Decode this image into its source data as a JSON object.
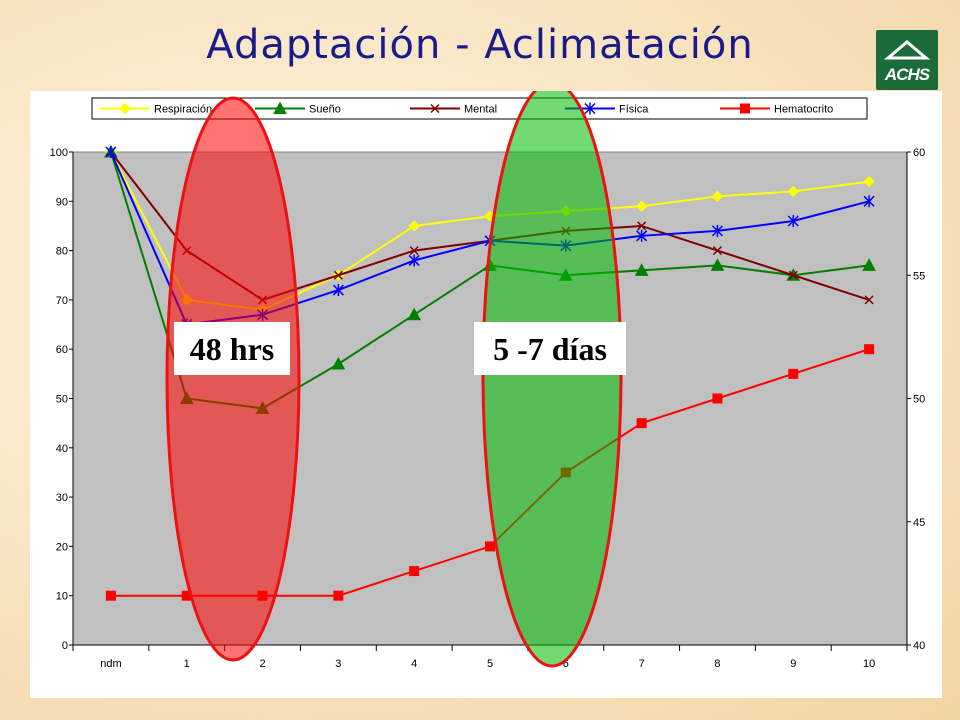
{
  "slide": {
    "title": "Adaptación - Aclimatación",
    "logo_text": "ACHS"
  },
  "chart_data": {
    "type": "line",
    "categories": [
      "ndm",
      "1",
      "2",
      "3",
      "4",
      "5",
      "6",
      "7",
      "8",
      "9",
      "10"
    ],
    "ylim": [
      0,
      100
    ],
    "yticks": [
      0,
      10,
      20,
      30,
      40,
      50,
      60,
      70,
      80,
      90,
      100
    ],
    "y2lim": [
      40,
      60
    ],
    "y2ticks": [
      40,
      45,
      50,
      55,
      60
    ],
    "grid": false,
    "plot_background": "#c0c0c0",
    "legend_position": "top",
    "series": [
      {
        "name": "Respiración",
        "axis": "left",
        "color": "#ffff00",
        "marker": "diamond",
        "values": [
          100,
          70,
          68,
          75,
          85,
          87,
          88,
          89,
          91,
          92,
          94
        ]
      },
      {
        "name": "Sueño",
        "axis": "left",
        "color": "#008000",
        "marker": "triangle",
        "values": [
          100,
          50,
          48,
          57,
          67,
          77,
          75,
          76,
          77,
          75,
          77
        ]
      },
      {
        "name": "Mental",
        "axis": "left",
        "color": "#800000",
        "marker": "x",
        "values": [
          100,
          80,
          70,
          75,
          80,
          82,
          84,
          85,
          80,
          75,
          70
        ]
      },
      {
        "name": "Física",
        "axis": "left",
        "color": "#0000ff",
        "marker": "star",
        "values": [
          100,
          65,
          67,
          72,
          78,
          82,
          81,
          83,
          84,
          86,
          90
        ]
      },
      {
        "name": "Hematocrito",
        "axis": "left",
        "color": "#ff0000",
        "marker": "square",
        "values": [
          10,
          10,
          10,
          10,
          15,
          20,
          35,
          45,
          50,
          55,
          60
        ]
      }
    ],
    "annotations": [
      {
        "text": "48 hrs",
        "highlight_color": "#ff0000"
      },
      {
        "text": "5 -7 días",
        "highlight_color": "#00bb00"
      }
    ]
  }
}
